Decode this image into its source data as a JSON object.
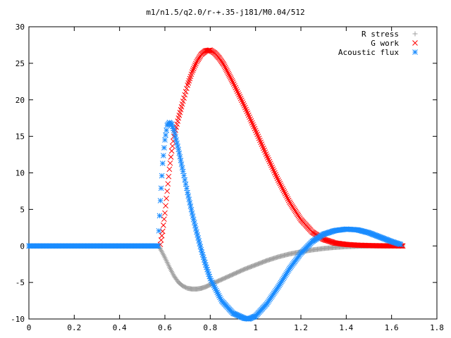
{
  "chart_data": {
    "type": "scatter",
    "title": "m1/n1.5/q2.0/r-+.35-j181/M0.04/512",
    "xlabel": "",
    "ylabel": "",
    "xlim": [
      0,
      1.8
    ],
    "ylim": [
      -10,
      30
    ],
    "xticks": [
      "0",
      "0.2",
      "0.4",
      "0.6",
      "0.8",
      "1",
      "1.2",
      "1.4",
      "1.6",
      "1.8"
    ],
    "yticks": [
      "-10",
      "-5",
      "0",
      "5",
      "10",
      "15",
      "20",
      "25",
      "30"
    ],
    "grid": false,
    "legend_position": "top-right",
    "series": [
      {
        "name": "R stress",
        "marker": "plus",
        "color": "#a0a0a0",
        "x": [
          0,
          0.1,
          0.2,
          0.3,
          0.4,
          0.5,
          0.57,
          0.58,
          0.6,
          0.62,
          0.64,
          0.66,
          0.68,
          0.7,
          0.72,
          0.74,
          0.76,
          0.78,
          0.8,
          0.85,
          0.9,
          0.95,
          1.0,
          1.05,
          1.1,
          1.15,
          1.2,
          1.25,
          1.3,
          1.35,
          1.4,
          1.45,
          1.5,
          1.55,
          1.6,
          1.65
        ],
        "y": [
          0,
          0,
          0,
          0,
          0,
          0,
          0,
          -0.4,
          -1.6,
          -2.9,
          -4.1,
          -5.0,
          -5.5,
          -5.8,
          -5.9,
          -5.9,
          -5.8,
          -5.6,
          -5.3,
          -4.6,
          -3.9,
          -3.2,
          -2.6,
          -2.0,
          -1.5,
          -1.1,
          -0.8,
          -0.55,
          -0.35,
          -0.2,
          -0.1,
          -0.05,
          0,
          0,
          0,
          0
        ]
      },
      {
        "name": "G work",
        "marker": "cross",
        "color": "#ff0000",
        "x": [
          0.58,
          0.59,
          0.6,
          0.61,
          0.62,
          0.63,
          0.64,
          0.66,
          0.68,
          0.7,
          0.72,
          0.74,
          0.76,
          0.78,
          0.8,
          0.82,
          0.84,
          0.86,
          0.88,
          0.9,
          0.95,
          1.0,
          1.05,
          1.1,
          1.15,
          1.2,
          1.25,
          1.3,
          1.35,
          1.4,
          1.45,
          1.5,
          1.55,
          1.6,
          1.65
        ],
        "y": [
          0.2,
          2.0,
          4.5,
          7.5,
          10.5,
          13.0,
          15.0,
          17.5,
          19.8,
          22.0,
          23.8,
          25.2,
          26.2,
          26.7,
          26.8,
          26.4,
          25.7,
          24.8,
          23.6,
          22.4,
          19.2,
          15.8,
          12.3,
          9.0,
          6.0,
          3.6,
          1.9,
          0.9,
          0.4,
          0.2,
          0.1,
          0.05,
          0.02,
          0.01,
          0
        ]
      },
      {
        "name": "Acoustic flux",
        "marker": "star",
        "color": "#1a8cff",
        "x": [
          0,
          0.1,
          0.2,
          0.3,
          0.4,
          0.5,
          0.57,
          0.58,
          0.59,
          0.6,
          0.61,
          0.62,
          0.63,
          0.64,
          0.66,
          0.68,
          0.7,
          0.72,
          0.74,
          0.76,
          0.78,
          0.8,
          0.85,
          0.9,
          0.95,
          0.97,
          1.0,
          1.05,
          1.1,
          1.15,
          1.2,
          1.25,
          1.3,
          1.35,
          1.4,
          1.45,
          1.5,
          1.55,
          1.6,
          1.64
        ],
        "y": [
          0,
          0,
          0,
          0,
          0,
          0,
          0,
          6.2,
          11.3,
          14.5,
          16.5,
          16.9,
          16.6,
          15.8,
          13.2,
          10.2,
          7.3,
          4.5,
          1.9,
          -0.5,
          -2.6,
          -4.5,
          -7.5,
          -9.2,
          -9.9,
          -10.0,
          -9.6,
          -7.9,
          -5.6,
          -3.1,
          -1.0,
          0.6,
          1.6,
          2.1,
          2.3,
          2.2,
          1.8,
          1.2,
          0.6,
          0.2
        ]
      }
    ]
  }
}
